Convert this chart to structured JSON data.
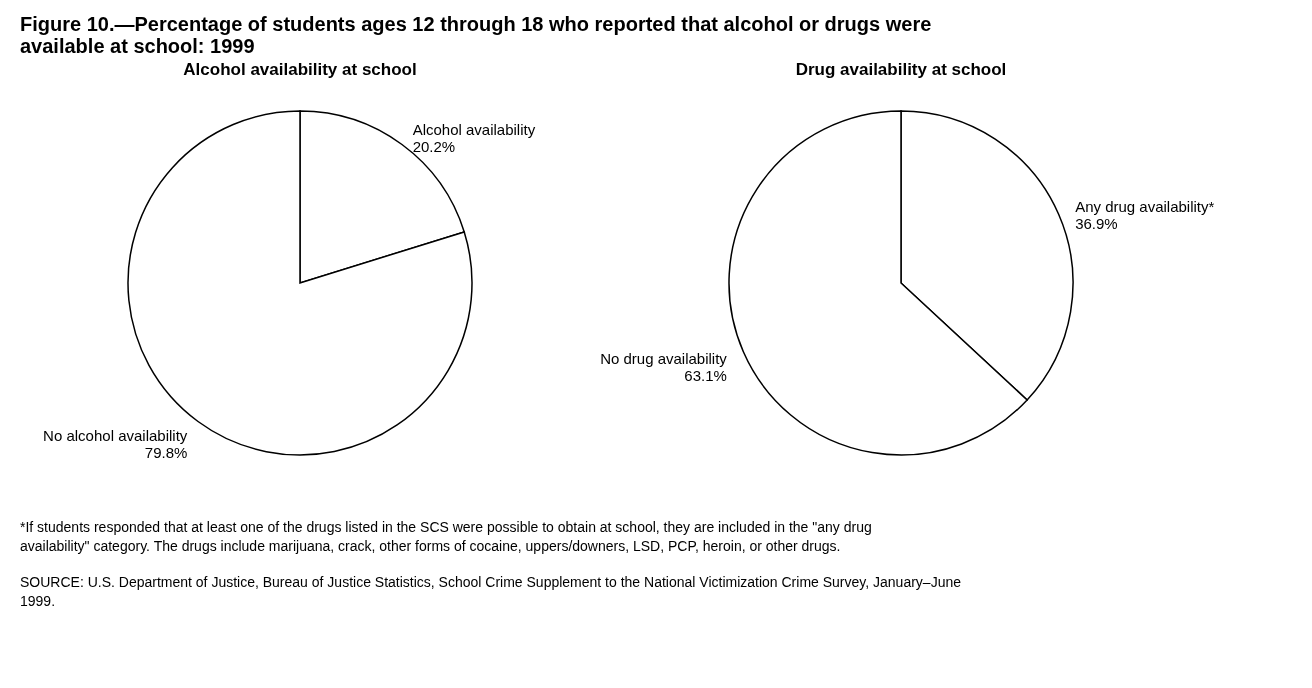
{
  "chart_data": [
    {
      "type": "pie",
      "title": "Figure 10.—Percentage of students ages 12 through 18 who reported that alcohol or drugs were available at school:  1999",
      "subtitle": "Alcohol availability at school",
      "categories": [
        "Alcohol availability",
        "No alcohol availability"
      ],
      "values": [
        20.2,
        79.8
      ],
      "colors": [
        "#ffffff",
        "#ffffff"
      ],
      "value_labels": [
        "20.2%",
        "79.8%"
      ],
      "legend": false,
      "annotations": [
        "*If students responded that at least one of the drugs listed in the SCS were possible to obtain at school, they are included in the \"any drug availability\" category. The drugs include marijuana, crack, other forms of cocaine, uppers/downers, LSD, PCP, heroin, or other drugs.",
        "SOURCE:  U.S. Department of Justice, Bureau of Justice Statistics, School Crime Supplement to the National Victimization Crime Survey, January–June 1999."
      ]
    },
    {
      "type": "pie",
      "title": "Drug availability at school",
      "categories": [
        "Any drug availability*",
        "No drug availability"
      ],
      "values": [
        36.9,
        63.1
      ],
      "colors": [
        "#ffffff",
        "#ffffff"
      ],
      "value_labels": [
        "36.9%",
        "63.1%"
      ],
      "legend": false
    }
  ]
}
